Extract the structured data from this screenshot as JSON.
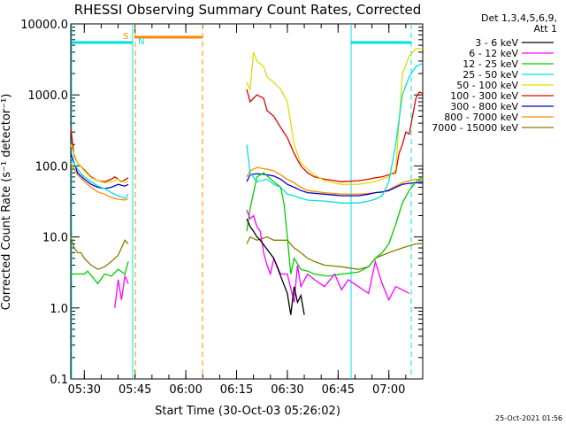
{
  "chart_data": {
    "type": "line",
    "title": "RHESSI Observing Summary Count Rates, Corrected",
    "xlabel": "Start Time (30-Oct-03 05:26:02)",
    "ylabel": "Corrected Count Rate (s⁻¹ detector⁻¹)",
    "yscale": "log",
    "ylim": [
      0.1,
      10000
    ],
    "xlim_minutes": [
      0,
      104
    ],
    "x_ticks": [
      "05:30",
      "05:45",
      "06:00",
      "06:15",
      "06:30",
      "06:45",
      "07:00"
    ],
    "y_ticks": [
      "0.1",
      "1.0",
      "10.0",
      "100.0",
      "1000.0",
      "10000.0"
    ],
    "legend_header": [
      "Det 1,3,4,5,6,9,",
      "Att 1"
    ],
    "timestamp": "25-Oct-2021 01:56",
    "markers": {
      "s_label": "S",
      "n_label": "N"
    },
    "series": [
      {
        "name": "3 - 6 keV",
        "color": "#000000",
        "points": [
          [
            52,
            18
          ],
          [
            53,
            14
          ],
          [
            54,
            12
          ],
          [
            55,
            10
          ],
          [
            56,
            9
          ],
          [
            60,
            5
          ],
          [
            64,
            1.6
          ],
          [
            65,
            0.8
          ],
          [
            66,
            2
          ],
          [
            67,
            1.2
          ],
          [
            68,
            1.5
          ],
          [
            69,
            0.8
          ]
        ]
      },
      {
        "name": "6 - 12 keV",
        "color": "#ff00ff",
        "points": [
          [
            13,
            1.0
          ],
          [
            14,
            2.5
          ],
          [
            15,
            1.3
          ],
          [
            16,
            2.8
          ],
          [
            17,
            2.2
          ],
          [
            52,
            24
          ],
          [
            53,
            18
          ],
          [
            54,
            20
          ],
          [
            55,
            14
          ],
          [
            56,
            12
          ],
          [
            57,
            6
          ],
          [
            58,
            4
          ],
          [
            59,
            3
          ],
          [
            60,
            5
          ],
          [
            62,
            3
          ],
          [
            64,
            3
          ],
          [
            66,
            1.2
          ],
          [
            67,
            4
          ],
          [
            68,
            2
          ],
          [
            70,
            3
          ],
          [
            72,
            2.5
          ],
          [
            75,
            2
          ],
          [
            78,
            3
          ],
          [
            80,
            1.8
          ],
          [
            82,
            2.5
          ],
          [
            85,
            2
          ],
          [
            88,
            1.6
          ],
          [
            90,
            4.5
          ],
          [
            92,
            2.2
          ],
          [
            94,
            1.3
          ],
          [
            96,
            2
          ],
          [
            98,
            1.8
          ],
          [
            100,
            1.6
          ]
        ]
      },
      {
        "name": "12 - 25 keV",
        "color": "#00cc00",
        "points": [
          [
            0,
            3
          ],
          [
            4,
            3
          ],
          [
            5,
            3.3
          ],
          [
            8,
            2.2
          ],
          [
            10,
            3
          ],
          [
            12,
            2.8
          ],
          [
            14,
            3.5
          ],
          [
            16,
            3
          ],
          [
            17,
            4.5
          ],
          [
            52,
            12
          ],
          [
            53,
            25
          ],
          [
            55,
            70
          ],
          [
            57,
            80
          ],
          [
            58,
            72
          ],
          [
            60,
            60
          ],
          [
            62,
            50
          ],
          [
            63,
            30
          ],
          [
            64,
            10
          ],
          [
            65,
            3
          ],
          [
            66,
            5
          ],
          [
            68,
            3.5
          ],
          [
            70,
            3.3
          ],
          [
            72,
            3
          ],
          [
            76,
            2.8
          ],
          [
            80,
            3
          ],
          [
            85,
            3.2
          ],
          [
            88,
            3.8
          ],
          [
            90,
            5
          ],
          [
            92,
            6
          ],
          [
            94,
            8
          ],
          [
            96,
            15
          ],
          [
            98,
            30
          ],
          [
            100,
            45
          ],
          [
            102,
            60
          ],
          [
            104,
            70
          ]
        ]
      },
      {
        "name": "25 - 50 keV",
        "color": "#00e0e0",
        "points": [
          [
            0,
            130
          ],
          [
            2,
            90
          ],
          [
            4,
            70
          ],
          [
            6,
            60
          ],
          [
            8,
            52
          ],
          [
            10,
            48
          ],
          [
            12,
            42
          ],
          [
            14,
            38
          ],
          [
            16,
            35
          ],
          [
            17,
            40
          ],
          [
            52,
            200
          ],
          [
            53,
            80
          ],
          [
            55,
            60
          ],
          [
            58,
            65
          ],
          [
            60,
            55
          ],
          [
            62,
            50
          ],
          [
            64,
            40
          ],
          [
            66,
            38
          ],
          [
            68,
            35
          ],
          [
            70,
            33
          ],
          [
            75,
            32
          ],
          [
            80,
            30
          ],
          [
            85,
            30
          ],
          [
            88,
            32
          ],
          [
            90,
            34
          ],
          [
            92,
            38
          ],
          [
            94,
            60
          ],
          [
            96,
            200
          ],
          [
            98,
            1000
          ],
          [
            100,
            1800
          ],
          [
            102,
            2500
          ],
          [
            104,
            2800
          ]
        ]
      },
      {
        "name": "50 - 100 keV",
        "color": "#dddd00",
        "points": [
          [
            0,
            200
          ],
          [
            2,
            110
          ],
          [
            4,
            85
          ],
          [
            6,
            68
          ],
          [
            8,
            62
          ],
          [
            10,
            58
          ],
          [
            12,
            60
          ],
          [
            14,
            65
          ],
          [
            16,
            58
          ],
          [
            17,
            62
          ],
          [
            52,
            1500
          ],
          [
            53,
            1200
          ],
          [
            54,
            4000
          ],
          [
            55,
            3000
          ],
          [
            57,
            2500
          ],
          [
            58,
            1800
          ],
          [
            60,
            1500
          ],
          [
            62,
            1200
          ],
          [
            64,
            800
          ],
          [
            65,
            400
          ],
          [
            66,
            200
          ],
          [
            68,
            110
          ],
          [
            70,
            90
          ],
          [
            72,
            75
          ],
          [
            75,
            62
          ],
          [
            80,
            55
          ],
          [
            85,
            55
          ],
          [
            88,
            58
          ],
          [
            90,
            60
          ],
          [
            92,
            65
          ],
          [
            94,
            70
          ],
          [
            96,
            90
          ],
          [
            97,
            400
          ],
          [
            98,
            2000
          ],
          [
            100,
            3500
          ],
          [
            102,
            4500
          ],
          [
            104,
            4500
          ]
        ]
      },
      {
        "name": "100 - 300 keV",
        "color": "#e00000",
        "points": [
          [
            0,
            350
          ],
          [
            1,
            140
          ],
          [
            2,
            110
          ],
          [
            4,
            88
          ],
          [
            6,
            70
          ],
          [
            8,
            62
          ],
          [
            10,
            60
          ],
          [
            12,
            65
          ],
          [
            13,
            70
          ],
          [
            15,
            60
          ],
          [
            17,
            68
          ],
          [
            52,
            1200
          ],
          [
            53,
            800
          ],
          [
            55,
            1000
          ],
          [
            57,
            900
          ],
          [
            58,
            600
          ],
          [
            60,
            500
          ],
          [
            62,
            350
          ],
          [
            64,
            250
          ],
          [
            66,
            150
          ],
          [
            68,
            100
          ],
          [
            70,
            80
          ],
          [
            72,
            70
          ],
          [
            75,
            65
          ],
          [
            80,
            60
          ],
          [
            85,
            62
          ],
          [
            88,
            65
          ],
          [
            90,
            68
          ],
          [
            92,
            70
          ],
          [
            94,
            75
          ],
          [
            96,
            80
          ],
          [
            97,
            150
          ],
          [
            98,
            200
          ],
          [
            99,
            300
          ],
          [
            100,
            280
          ],
          [
            101,
            500
          ],
          [
            102,
            900
          ],
          [
            103,
            1100
          ],
          [
            104,
            1050
          ]
        ]
      },
      {
        "name": "300 - 800 keV",
        "color": "#0000cc",
        "points": [
          [
            0,
            150
          ],
          [
            2,
            80
          ],
          [
            4,
            65
          ],
          [
            6,
            55
          ],
          [
            8,
            50
          ],
          [
            10,
            48
          ],
          [
            12,
            50
          ],
          [
            14,
            55
          ],
          [
            16,
            52
          ],
          [
            17,
            55
          ],
          [
            52,
            60
          ],
          [
            53,
            75
          ],
          [
            55,
            78
          ],
          [
            58,
            75
          ],
          [
            60,
            72
          ],
          [
            62,
            65
          ],
          [
            64,
            55
          ],
          [
            66,
            50
          ],
          [
            68,
            45
          ],
          [
            70,
            42
          ],
          [
            75,
            40
          ],
          [
            80,
            38
          ],
          [
            85,
            38
          ],
          [
            88,
            40
          ],
          [
            90,
            42
          ],
          [
            92,
            43
          ],
          [
            94,
            45
          ],
          [
            96,
            50
          ],
          [
            98,
            55
          ],
          [
            100,
            57
          ],
          [
            102,
            58
          ],
          [
            104,
            57
          ]
        ]
      },
      {
        "name": "800 - 7000 keV",
        "color": "#ff8800",
        "points": [
          [
            0,
            110
          ],
          [
            2,
            75
          ],
          [
            4,
            60
          ],
          [
            6,
            50
          ],
          [
            8,
            43
          ],
          [
            10,
            40
          ],
          [
            12,
            36
          ],
          [
            14,
            34
          ],
          [
            16,
            33
          ],
          [
            17,
            35
          ],
          [
            52,
            70
          ],
          [
            53,
            85
          ],
          [
            55,
            95
          ],
          [
            58,
            90
          ],
          [
            60,
            85
          ],
          [
            62,
            75
          ],
          [
            64,
            65
          ],
          [
            66,
            58
          ],
          [
            68,
            50
          ],
          [
            70,
            45
          ],
          [
            75,
            42
          ],
          [
            80,
            40
          ],
          [
            85,
            40
          ],
          [
            88,
            41
          ],
          [
            90,
            42
          ],
          [
            92,
            43
          ],
          [
            94,
            46
          ],
          [
            96,
            52
          ],
          [
            98,
            58
          ],
          [
            100,
            62
          ],
          [
            102,
            65
          ],
          [
            104,
            63
          ]
        ]
      },
      {
        "name": "7000 - 15000 keV",
        "color": "#808000",
        "points": [
          [
            0,
            10
          ],
          [
            1,
            7
          ],
          [
            2,
            6
          ],
          [
            3,
            6
          ],
          [
            4,
            5
          ],
          [
            6,
            4
          ],
          [
            8,
            3.5
          ],
          [
            10,
            3.8
          ],
          [
            12,
            4.5
          ],
          [
            14,
            5.5
          ],
          [
            16,
            9
          ],
          [
            17,
            8
          ],
          [
            52,
            8
          ],
          [
            53,
            10
          ],
          [
            55,
            9
          ],
          [
            58,
            10
          ],
          [
            60,
            9
          ],
          [
            62,
            9
          ],
          [
            64,
            9
          ],
          [
            66,
            7
          ],
          [
            68,
            6
          ],
          [
            70,
            5
          ],
          [
            72,
            4.5
          ],
          [
            75,
            4
          ],
          [
            80,
            3.8
          ],
          [
            85,
            3.5
          ],
          [
            88,
            3.8
          ],
          [
            90,
            5
          ],
          [
            92,
            5.5
          ],
          [
            94,
            6
          ],
          [
            96,
            6.5
          ],
          [
            98,
            7
          ],
          [
            100,
            7.5
          ],
          [
            102,
            8
          ],
          [
            104,
            8
          ]
        ]
      }
    ]
  }
}
